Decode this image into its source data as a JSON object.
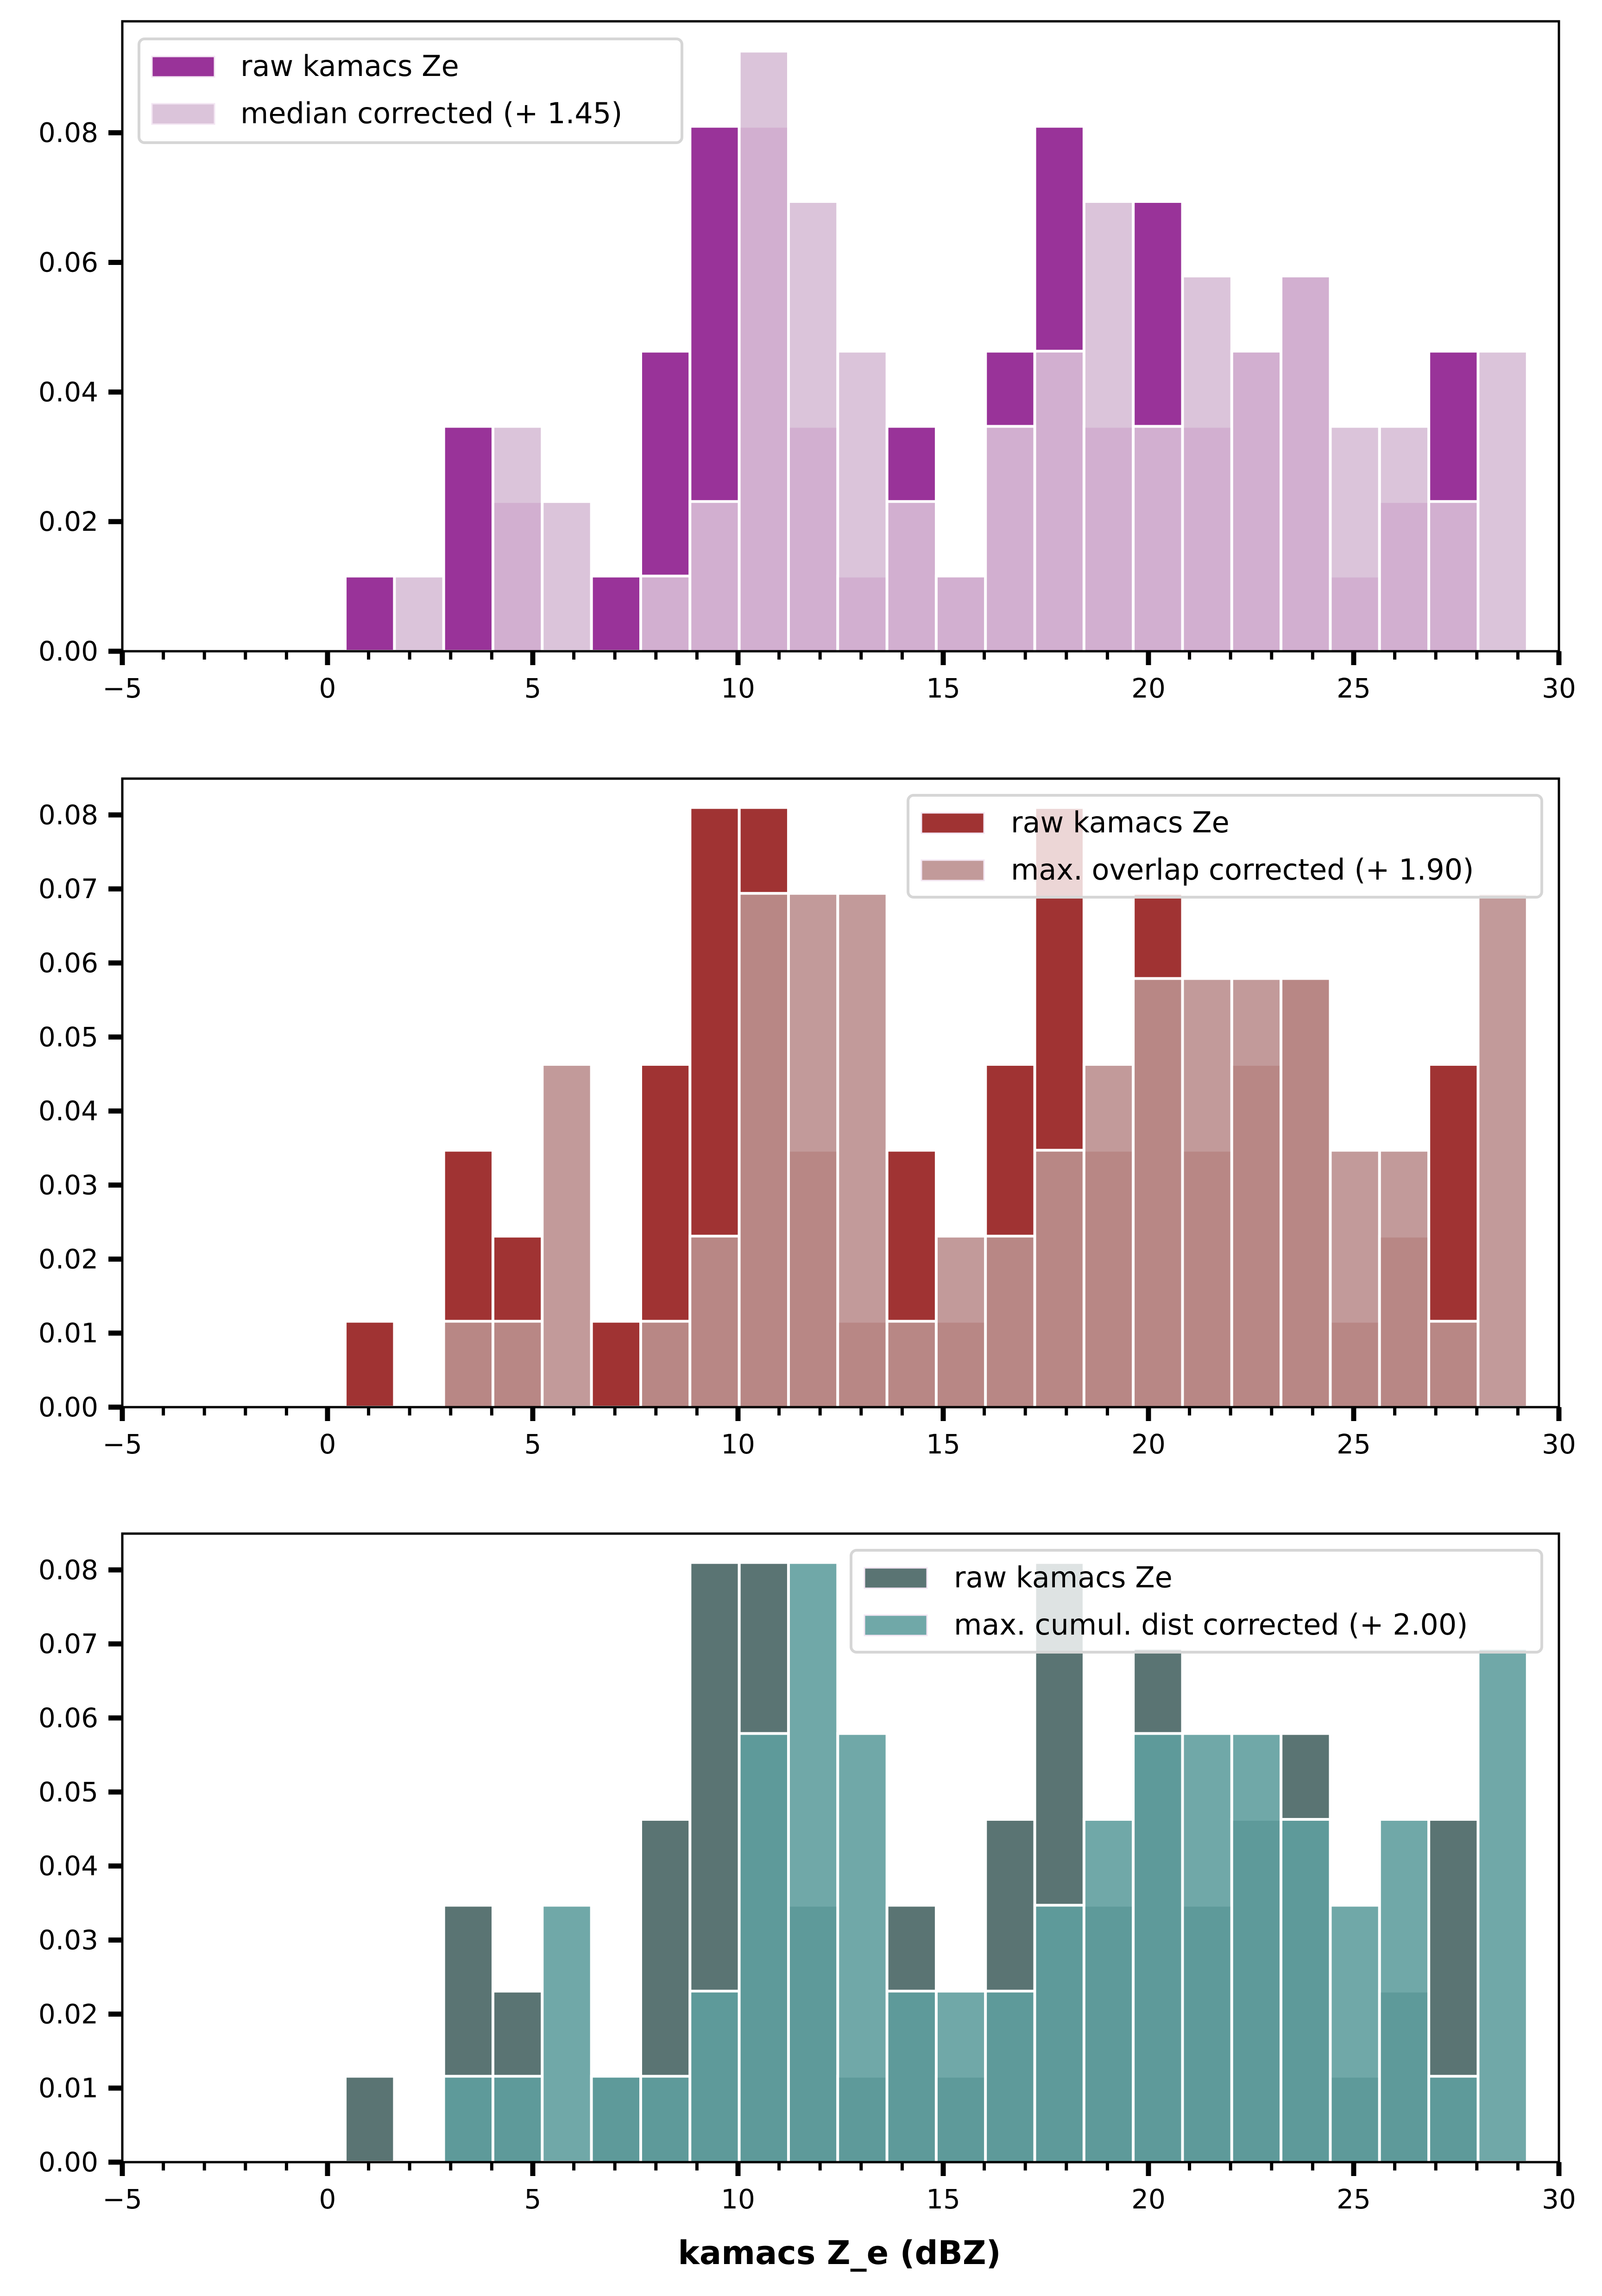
{
  "figure": {
    "xlabel": "kamacs Z_e (dBZ)"
  },
  "chart_data": [
    {
      "type": "bar",
      "subtype": "overlaid histogram (density)",
      "title": "",
      "xlabel": "",
      "ylabel": "",
      "xlim": [
        -5,
        30
      ],
      "ylim": [
        0,
        0.0972
      ],
      "xticks": [
        -5,
        0,
        5,
        10,
        15,
        20,
        25,
        30
      ],
      "xtick_labels": [
        "−5",
        "0",
        "5",
        "10",
        "15",
        "20",
        "25",
        "30"
      ],
      "yticks": [
        0,
        0.02,
        0.04,
        0.06,
        0.08
      ],
      "ytick_labels": [
        "0.00",
        "0.02",
        "0.04",
        "0.06",
        "0.08"
      ],
      "legend_position": "top-left",
      "bin_start": 0.43,
      "bin_width": 1.2,
      "series": [
        {
          "name": "raw kamacs Ze",
          "color": "#993399",
          "values": [
            0.0116,
            0,
            0.0347,
            0.0231,
            0,
            0.0116,
            0.0463,
            0.081,
            0.081,
            0.0347,
            0.0116,
            0.0347,
            0.0116,
            0.0463,
            0.081,
            0.0347,
            0.0694,
            0.0347,
            0.0463,
            0.0579,
            0.0116,
            0.0231,
            0.0463,
            0
          ]
        },
        {
          "name": "median corrected (+ 1.45)",
          "color": "#dbc4da",
          "values": [
            0,
            0.0116,
            0,
            0.0347,
            0.0231,
            0,
            0.0116,
            0.0231,
            0.0926,
            0.0694,
            0.0463,
            0.0231,
            0.0116,
            0.0347,
            0.0463,
            0.0694,
            0.0347,
            0.0579,
            0.0463,
            0.0579,
            0.0347,
            0.0347,
            0.0231,
            0.0463
          ]
        }
      ],
      "overlap_color": "#d2afd0"
    },
    {
      "type": "bar",
      "subtype": "overlaid histogram (density)",
      "title": "",
      "xlabel": "",
      "ylabel": "",
      "xlim": [
        -5,
        30
      ],
      "ylim": [
        0,
        0.0849
      ],
      "xticks": [
        -5,
        0,
        5,
        10,
        15,
        20,
        25,
        30
      ],
      "xtick_labels": [
        "−5",
        "0",
        "5",
        "10",
        "15",
        "20",
        "25",
        "30"
      ],
      "yticks": [
        0,
        0.01,
        0.02,
        0.03,
        0.04,
        0.05,
        0.06,
        0.07,
        0.08
      ],
      "ytick_labels": [
        "0.00",
        "0.01",
        "0.02",
        "0.03",
        "0.04",
        "0.05",
        "0.06",
        "0.07",
        "0.08"
      ],
      "legend_position": "top-right",
      "bin_start": 0.43,
      "bin_width": 1.2,
      "series": [
        {
          "name": "raw kamacs Ze",
          "color": "#a03333",
          "values": [
            0.0116,
            0,
            0.0347,
            0.0231,
            0,
            0.0116,
            0.0463,
            0.081,
            0.081,
            0.0347,
            0.0116,
            0.0347,
            0.0116,
            0.0463,
            0.081,
            0.0347,
            0.0694,
            0.0347,
            0.0463,
            0.0579,
            0.0116,
            0.0231,
            0.0463,
            0
          ]
        },
        {
          "name": "max. overlap corrected (+ 1.90)",
          "color": "#c29a9a",
          "values": [
            0,
            0,
            0.0116,
            0.0116,
            0.0463,
            0,
            0.0116,
            0.0231,
            0.0694,
            0.0694,
            0.0694,
            0.0116,
            0.0231,
            0.0231,
            0.0347,
            0.0463,
            0.0579,
            0.0579,
            0.0579,
            0.0579,
            0.0347,
            0.0347,
            0.0116,
            0.0694
          ]
        }
      ],
      "overlap_color": "#b88785"
    },
    {
      "type": "bar",
      "subtype": "overlaid histogram (density)",
      "title": "",
      "xlabel": "kamacs Z_e (dBZ)",
      "ylabel": "",
      "xlim": [
        -5,
        30
      ],
      "ylim": [
        0,
        0.0849
      ],
      "xticks": [
        -5,
        0,
        5,
        10,
        15,
        20,
        25,
        30
      ],
      "xtick_labels": [
        "−5",
        "0",
        "5",
        "10",
        "15",
        "20",
        "25",
        "30"
      ],
      "yticks": [
        0,
        0.01,
        0.02,
        0.03,
        0.04,
        0.05,
        0.06,
        0.07,
        0.08
      ],
      "ytick_labels": [
        "0.00",
        "0.01",
        "0.02",
        "0.03",
        "0.04",
        "0.05",
        "0.06",
        "0.07",
        "0.08"
      ],
      "legend_position": "top-right",
      "bin_start": 0.43,
      "bin_width": 1.2,
      "series": [
        {
          "name": "raw kamacs Ze",
          "color": "#5a7473",
          "values": [
            0.0116,
            0,
            0.0347,
            0.0231,
            0,
            0.0116,
            0.0463,
            0.081,
            0.081,
            0.0347,
            0.0116,
            0.0347,
            0.0116,
            0.0463,
            0.081,
            0.0347,
            0.0694,
            0.0347,
            0.0463,
            0.0579,
            0.0116,
            0.0231,
            0.0463,
            0
          ]
        },
        {
          "name": "max. cumul. dist corrected (+ 2.00)",
          "color": "#70a8a8",
          "values": [
            0,
            0,
            0.0116,
            0.0116,
            0.0347,
            0.0116,
            0.0116,
            0.0231,
            0.0579,
            0.081,
            0.0579,
            0.0231,
            0.0231,
            0.0231,
            0.0347,
            0.0463,
            0.0579,
            0.0579,
            0.0579,
            0.0463,
            0.0347,
            0.0463,
            0.0116,
            0.0694
          ]
        }
      ],
      "overlap_color": "#5e9a9a"
    }
  ]
}
